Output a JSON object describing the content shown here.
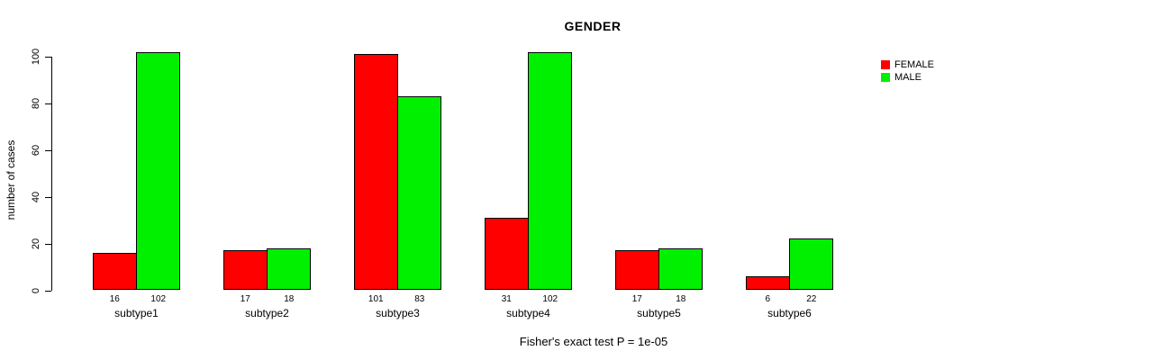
{
  "chart_data": {
    "type": "bar",
    "title": "GENDER",
    "subtitle": "Fisher's exact test P = 1e-05",
    "xlabel": "",
    "ylabel": "number of cases",
    "categories": [
      "subtype1",
      "subtype2",
      "subtype3",
      "subtype4",
      "subtype5",
      "subtype6"
    ],
    "series": [
      {
        "name": "FEMALE",
        "color": "#ff0000",
        "values": [
          16,
          17,
          101,
          31,
          17,
          6
        ]
      },
      {
        "name": "MALE",
        "color": "#00f000",
        "values": [
          102,
          18,
          83,
          102,
          18,
          22
        ]
      }
    ],
    "bar_value_labels": [
      [
        16,
        102
      ],
      [
        17,
        18
      ],
      [
        101,
        83
      ],
      [
        31,
        102
      ],
      [
        17,
        18
      ],
      [
        6,
        22
      ]
    ],
    "yticks": [
      0,
      20,
      40,
      60,
      80,
      100
    ],
    "ylim": [
      0,
      100
    ],
    "grid": false,
    "legend_position": "top-right",
    "bar_border_color": "#000000",
    "background_color": "#ffffff"
  }
}
